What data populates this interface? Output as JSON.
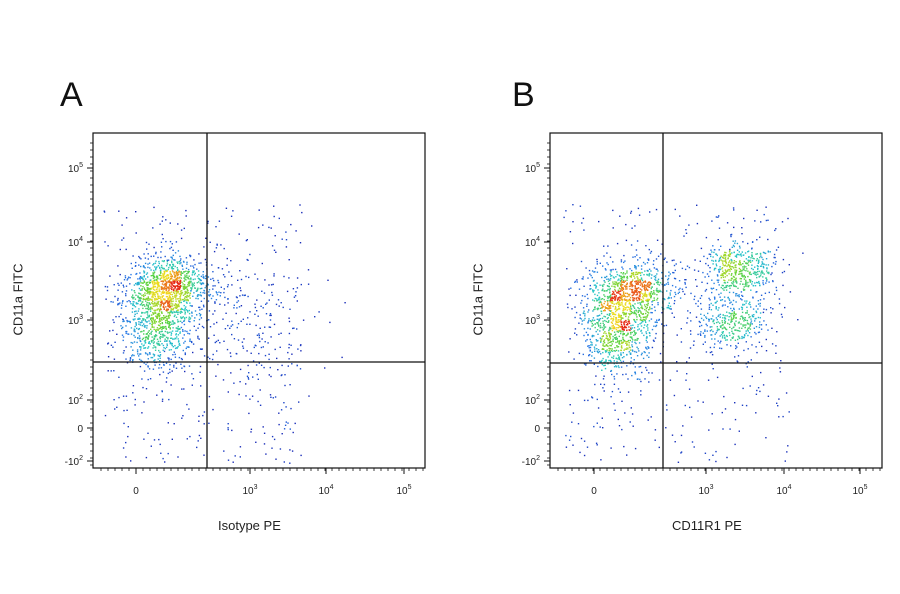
{
  "chart_data": [
    {
      "type": "scatter",
      "panel_label": "A",
      "xlabel": "Isotype PE",
      "ylabel": "CD11a FITC",
      "x_ticks": [
        {
          "label": "0",
          "value": 0
        },
        {
          "label": "10",
          "exp": "3",
          "value": 1000
        },
        {
          "label": "10",
          "exp": "4",
          "value": 10000
        },
        {
          "label": "10",
          "exp": "5",
          "value": 100000
        }
      ],
      "y_ticks": [
        {
          "label": "10",
          "exp": "5",
          "value": 100000
        },
        {
          "label": "10",
          "exp": "4",
          "value": 10000
        },
        {
          "label": "10",
          "exp": "3",
          "value": 1000
        },
        {
          "label": "10",
          "exp": "2",
          "value": 100
        },
        {
          "label": "0",
          "value": 0
        },
        {
          "label": "-10",
          "exp": "2",
          "value": -100
        }
      ],
      "gate": {
        "x": 400,
        "y": 300
      },
      "clusters": [
        {
          "x": 50,
          "y": 1000,
          "density": 1.0
        },
        {
          "x": 80,
          "y": 3000,
          "density": 0.8
        },
        {
          "x": 1000,
          "y": 800,
          "density": 0.2
        }
      ]
    },
    {
      "type": "scatter",
      "panel_label": "B",
      "xlabel": "CD11R1 PE",
      "ylabel": "CD11a FITC",
      "x_ticks": [
        {
          "label": "0",
          "value": 0
        },
        {
          "label": "10",
          "exp": "3",
          "value": 1000
        },
        {
          "label": "10",
          "exp": "4",
          "value": 10000
        },
        {
          "label": "10",
          "exp": "5",
          "value": 100000
        }
      ],
      "y_ticks": [
        {
          "label": "10",
          "exp": "5",
          "value": 100000
        },
        {
          "label": "10",
          "exp": "4",
          "value": 10000
        },
        {
          "label": "10",
          "exp": "3",
          "value": 1000
        },
        {
          "label": "10",
          "exp": "2",
          "value": 100
        },
        {
          "label": "0",
          "value": 0
        },
        {
          "label": "-10",
          "exp": "2",
          "value": -100
        }
      ],
      "gate": {
        "x": 400,
        "y": 300
      },
      "clusters": [
        {
          "x": 50,
          "y": 900,
          "density": 1.0
        },
        {
          "x": 100,
          "y": 2500,
          "density": 0.6
        },
        {
          "x": 2500,
          "y": 4500,
          "density": 0.5
        },
        {
          "x": 2000,
          "y": 1000,
          "density": 0.4
        }
      ]
    }
  ]
}
